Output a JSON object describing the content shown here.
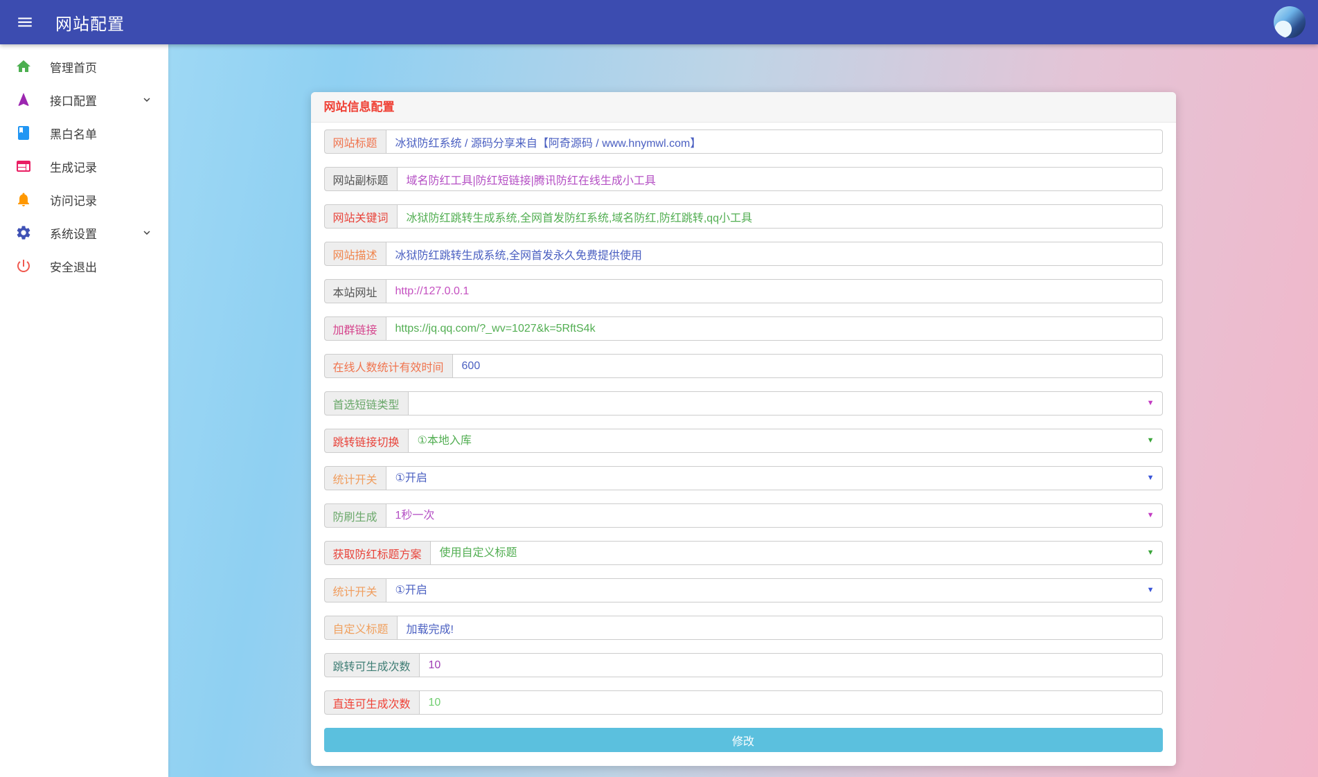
{
  "navbar": {
    "title": "网站配置"
  },
  "sidebar": {
    "items": [
      {
        "key": "home",
        "label": "管理首页",
        "icon": "home-icon",
        "icon_color": "#4caf50",
        "has_submenu": false
      },
      {
        "key": "api-config",
        "label": "接口配置",
        "icon": "navigation-icon",
        "icon_color": "#9c27b0",
        "has_submenu": true
      },
      {
        "key": "blacklist",
        "label": "黑白名单",
        "icon": "book-icon",
        "icon_color": "#2196f3",
        "has_submenu": false
      },
      {
        "key": "generate-records",
        "label": "生成记录",
        "icon": "card-icon",
        "icon_color": "#e91e63",
        "has_submenu": false
      },
      {
        "key": "visit-records",
        "label": "访问记录",
        "icon": "bell-icon",
        "icon_color": "#ff9800",
        "has_submenu": false
      },
      {
        "key": "system-settings",
        "label": "系统设置",
        "icon": "gear-icon",
        "icon_color": "#3f51b5",
        "has_submenu": true
      },
      {
        "key": "logout",
        "label": "安全退出",
        "icon": "power-icon",
        "icon_color": "#f05a50",
        "has_submenu": false
      }
    ]
  },
  "card": {
    "header": "网站信息配置",
    "submit_label": "修改",
    "fields": [
      {
        "key": "site-title",
        "type": "text",
        "label": "网站标题",
        "label_color": "#f0744e",
        "value": "冰狱防红系统 / 源码分享来自【阿奇源码 / www.hnymwl.com】",
        "value_color": "#4a5fc1"
      },
      {
        "key": "site-subtitle",
        "type": "text",
        "label": "网站副标题",
        "label_color": "#555555",
        "value": "域名防红工具|防红短链接|腾讯防红在线生成小工具",
        "value_color": "#b44fc4"
      },
      {
        "key": "site-keywords",
        "type": "text",
        "label": "网站关键词",
        "label_color": "#e8433a",
        "value": "冰狱防红跳转生成系统,全网首发防红系统,域名防红,防红跳转,qq小工具",
        "value_color": "#52ae52"
      },
      {
        "key": "site-description",
        "type": "text",
        "label": "网站描述",
        "label_color": "#f0864e",
        "value": "冰狱防红跳转生成系统,全网首发永久免费提供使用",
        "value_color": "#4a5fc1"
      },
      {
        "key": "site-url",
        "type": "text",
        "label": "本站网址",
        "label_color": "#555555",
        "value": "http://127.0.0.1",
        "value_color": "#c44fc0"
      },
      {
        "key": "group-link",
        "type": "text",
        "label": "加群链接",
        "label_color": "#d5458d",
        "value": "https://jq.qq.com/?_wv=1027&k=5RftS4k",
        "value_color": "#52ae52"
      },
      {
        "key": "online-count-time",
        "type": "text",
        "label": "在线人数统计有效时间",
        "label_color": "#f0744e",
        "value": "600",
        "value_color": "#4a5fc1"
      },
      {
        "key": "short-link-type",
        "type": "select",
        "label": "首选短链类型",
        "label_color": "#6aa86a",
        "value": "",
        "value_color": "#555555",
        "arrow_color": "#c23cc2"
      },
      {
        "key": "redirect-switch",
        "type": "select",
        "label": "跳转链接切换",
        "label_color": "#e8433a",
        "value": "①本地入库",
        "value_color": "#52ae52",
        "arrow_color": "#3aa53a"
      },
      {
        "key": "stats-switch-1",
        "type": "select",
        "label": "统计开关",
        "label_color": "#f09d5e",
        "value": "①开启",
        "value_color": "#4a5fc1",
        "arrow_color": "#3a55d8"
      },
      {
        "key": "anti-flood",
        "type": "select",
        "label": "防刷生成",
        "label_color": "#6aa86a",
        "value": "1秒一次",
        "value_color": "#b44fc4",
        "arrow_color": "#c23cc2"
      },
      {
        "key": "title-scheme",
        "type": "select",
        "label": "获取防红标题方案",
        "label_color": "#e8433a",
        "value": "使用自定义标题",
        "value_color": "#52ae52",
        "arrow_color": "#3aa53a"
      },
      {
        "key": "stats-switch-2",
        "type": "select",
        "label": "统计开关",
        "label_color": "#f09d5e",
        "value": "①开启",
        "value_color": "#4a5fc1",
        "arrow_color": "#3a55d8"
      },
      {
        "key": "custom-title",
        "type": "text",
        "label": "自定义标题",
        "label_color": "#f0a05e",
        "value": "加载完成!",
        "value_color": "#4a5fc1"
      },
      {
        "key": "redirect-gen-limit",
        "type": "text",
        "label": "跳转可生成次数",
        "label_color": "#3e7d74",
        "value": "10",
        "value_color": "#a03cb4"
      },
      {
        "key": "direct-gen-limit",
        "type": "text",
        "label": "直连可生成次数",
        "label_color": "#ef4136",
        "value": "10",
        "value_color": "#6fce6f"
      }
    ]
  }
}
